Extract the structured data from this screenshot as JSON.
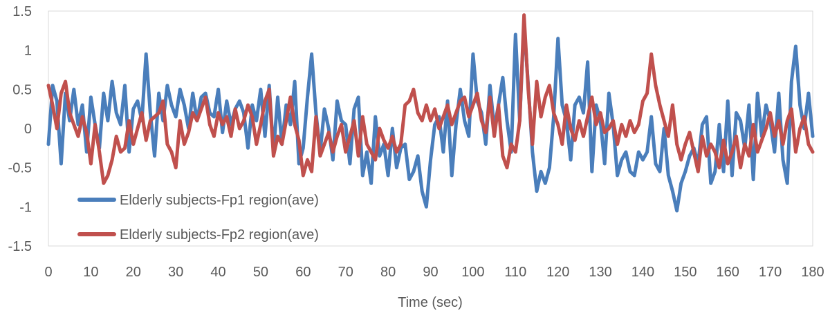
{
  "chart_data": {
    "type": "line",
    "title": "",
    "xlabel": "Time (sec)",
    "ylabel": "",
    "xlim": [
      0,
      180
    ],
    "ylim": [
      -1.5,
      1.5
    ],
    "x_ticks": [
      "0",
      "10",
      "20",
      "30",
      "40",
      "50",
      "60",
      "70",
      "80",
      "90",
      "100",
      "110",
      "120",
      "130",
      "140",
      "150",
      "160",
      "170",
      "180"
    ],
    "y_ticks": [
      "1.5",
      "1",
      "0.5",
      "0",
      "-0.5",
      "-1",
      "-1.5"
    ],
    "grid": "none",
    "legend_placement": "lower-left inside plot",
    "series": [
      {
        "name": "Elderly subjects-Fp1 region(ave)",
        "color": "#4a7ebb",
        "x": [
          0,
          1,
          2,
          3,
          4,
          5,
          6,
          7,
          8,
          9,
          10,
          11,
          12,
          13,
          14,
          15,
          16,
          17,
          18,
          19,
          20,
          21,
          22,
          23,
          24,
          25,
          26,
          27,
          28,
          29,
          30,
          31,
          32,
          33,
          34,
          35,
          36,
          37,
          38,
          39,
          40,
          41,
          42,
          43,
          44,
          45,
          46,
          47,
          48,
          49,
          50,
          51,
          52,
          53,
          54,
          55,
          56,
          57,
          58,
          59,
          60,
          61,
          62,
          63,
          64,
          65,
          66,
          67,
          68,
          69,
          70,
          71,
          72,
          73,
          74,
          75,
          76,
          77,
          78,
          79,
          80,
          81,
          82,
          83,
          84,
          85,
          86,
          87,
          88,
          89,
          90,
          91,
          92,
          93,
          94,
          95,
          96,
          97,
          98,
          99,
          100,
          101,
          102,
          103,
          104,
          105,
          106,
          107,
          108,
          109,
          110,
          111,
          112,
          113,
          114,
          115,
          116,
          117,
          118,
          119,
          120,
          121,
          122,
          123,
          124,
          125,
          126,
          127,
          128,
          129,
          130,
          131,
          132,
          133,
          134,
          135,
          136,
          137,
          138,
          139,
          140,
          141,
          142,
          143,
          144,
          145,
          146,
          147,
          148,
          149,
          150,
          151,
          152,
          153,
          154,
          155,
          156,
          157,
          158,
          159,
          160,
          161,
          162,
          163,
          164,
          165,
          166,
          167,
          168,
          169,
          170,
          171,
          172,
          173,
          174,
          175,
          176,
          177,
          178,
          179,
          180
        ],
        "y": [
          -0.2,
          0.55,
          0.35,
          -0.45,
          0.45,
          0.1,
          0.5,
          0.05,
          0.3,
          -0.3,
          0.4,
          0.05,
          -0.25,
          0.45,
          0.1,
          0.6,
          0.2,
          0.05,
          0.55,
          -0.3,
          0.25,
          0.35,
          0.1,
          0.95,
          0.2,
          -0.35,
          0.45,
          0.1,
          0.55,
          0.3,
          0.15,
          0.5,
          0.3,
          0.0,
          0.45,
          0.1,
          0.4,
          0.45,
          0.2,
          0.15,
          0.5,
          -0.05,
          0.35,
          0.05,
          0.25,
          0.35,
          0.2,
          -0.25,
          0.3,
          0.1,
          0.5,
          -0.1,
          0.55,
          -0.3,
          0.4,
          -0.2,
          0.3,
          0.05,
          0.6,
          -0.45,
          -0.25,
          0.4,
          0.95,
          0.2,
          -0.3,
          0.25,
          0.0,
          -0.4,
          0.35,
          0.1,
          0.05,
          -0.45,
          0.25,
          0.4,
          -0.6,
          -0.3,
          -0.7,
          0.15,
          -0.35,
          -0.2,
          -0.6,
          0.0,
          -0.5,
          -0.25,
          -0.2,
          -0.65,
          -0.55,
          -0.35,
          -0.8,
          -1.0,
          -0.4,
          0.05,
          0.15,
          -0.3,
          0.35,
          -0.6,
          0.05,
          0.5,
          0.1,
          -0.1,
          0.95,
          0.35,
          0.2,
          -0.2,
          0.55,
          0.0,
          0.3,
          0.65,
          0.1,
          -0.3,
          1.2,
          0.1,
          1.35,
          0.55,
          -0.3,
          -0.8,
          -0.55,
          -0.7,
          -0.5,
          0.15,
          1.15,
          0.3,
          0.1,
          -0.4,
          0.3,
          0.4,
          0.2,
          0.85,
          -0.55,
          0.3,
          0.1,
          -0.45,
          0.45,
          0.05,
          -0.6,
          -0.4,
          -0.3,
          -0.55,
          -0.6,
          -0.3,
          -0.4,
          -0.3,
          0.15,
          -0.45,
          -0.55,
          0.0,
          -0.6,
          -0.8,
          -1.05,
          -0.7,
          -0.55,
          -0.35,
          -0.25,
          -0.45,
          0.05,
          0.15,
          -0.7,
          -0.55,
          0.05,
          -0.55,
          0.35,
          -0.6,
          0.2,
          0.1,
          -0.25,
          0.3,
          -0.65,
          0.45,
          -0.1,
          0.3,
          0.1,
          -0.3,
          0.45,
          -0.4,
          -0.7,
          0.6,
          1.05,
          0.3,
          0.0,
          0.45,
          -0.1
        ]
      },
      {
        "name": "Elderly subjects-Fp2 region(ave)",
        "color": "#c0504d",
        "x": [
          0,
          1,
          2,
          3,
          4,
          5,
          6,
          7,
          8,
          9,
          10,
          11,
          12,
          13,
          14,
          15,
          16,
          17,
          18,
          19,
          20,
          21,
          22,
          23,
          24,
          25,
          26,
          27,
          28,
          29,
          30,
          31,
          32,
          33,
          34,
          35,
          36,
          37,
          38,
          39,
          40,
          41,
          42,
          43,
          44,
          45,
          46,
          47,
          48,
          49,
          50,
          51,
          52,
          53,
          54,
          55,
          56,
          57,
          58,
          59,
          60,
          61,
          62,
          63,
          64,
          65,
          66,
          67,
          68,
          69,
          70,
          71,
          72,
          73,
          74,
          75,
          76,
          77,
          78,
          79,
          80,
          81,
          82,
          83,
          84,
          85,
          86,
          87,
          88,
          89,
          90,
          91,
          92,
          93,
          94,
          95,
          96,
          97,
          98,
          99,
          100,
          101,
          102,
          103,
          104,
          105,
          106,
          107,
          108,
          109,
          110,
          111,
          112,
          113,
          114,
          115,
          116,
          117,
          118,
          119,
          120,
          121,
          122,
          123,
          124,
          125,
          126,
          127,
          128,
          129,
          130,
          131,
          132,
          133,
          134,
          135,
          136,
          137,
          138,
          139,
          140,
          141,
          142,
          143,
          144,
          145,
          146,
          147,
          148,
          149,
          150,
          151,
          152,
          153,
          154,
          155,
          156,
          157,
          158,
          159,
          160,
          161,
          162,
          163,
          164,
          165,
          166,
          167,
          168,
          169,
          170,
          171,
          172,
          173,
          174,
          175,
          176,
          177,
          178,
          179,
          180
        ],
        "y": [
          0.55,
          0.3,
          0.0,
          0.45,
          0.6,
          0.2,
          0.05,
          -0.1,
          0.15,
          -0.05,
          -0.45,
          0.05,
          -0.3,
          -0.7,
          -0.6,
          -0.4,
          -0.1,
          -0.3,
          -0.25,
          0.1,
          -0.2,
          0.0,
          0.2,
          -0.15,
          0.1,
          0.15,
          0.2,
          0.35,
          -0.2,
          -0.3,
          -0.5,
          0.1,
          -0.2,
          -0.05,
          0.2,
          0.1,
          0.25,
          0.4,
          0.05,
          -0.1,
          0.2,
          0.05,
          0.15,
          -0.1,
          0.25,
          0.0,
          0.1,
          0.3,
          0.15,
          -0.2,
          0.05,
          0.35,
          0.5,
          -0.35,
          -0.1,
          -0.2,
          0.1,
          0.4,
          0.05,
          -0.15,
          -0.6,
          -0.4,
          -0.55,
          0.15,
          -0.35,
          -0.2,
          -0.05,
          -0.3,
          -0.1,
          0.05,
          -0.3,
          -0.1,
          0.1,
          -0.35,
          0.15,
          -0.2,
          -0.3,
          -0.4,
          0.0,
          -0.15,
          -0.25,
          -0.1,
          -0.3,
          -0.2,
          0.3,
          0.35,
          0.5,
          0.2,
          0.1,
          0.3,
          0.1,
          0.25,
          0.0,
          0.15,
          0.3,
          0.05,
          0.2,
          0.35,
          0.4,
          0.15,
          0.3,
          0.45,
          0.1,
          -0.05,
          0.4,
          -0.1,
          0.3,
          -0.35,
          -0.5,
          -0.2,
          -0.3,
          0.1,
          1.45,
          0.5,
          -0.2,
          0.6,
          0.15,
          0.4,
          0.55,
          0.2,
          0.05,
          -0.2,
          0.3,
          0.0,
          -0.15,
          0.1,
          -0.1,
          0.15,
          0.4,
          0.05,
          0.2,
          -0.05,
          0.0,
          0.1,
          -0.2,
          0.05,
          -0.1,
          0.1,
          -0.05,
          0.05,
          0.35,
          0.45,
          0.95,
          0.55,
          0.3,
          0.1,
          -0.1,
          0.3,
          -0.2,
          -0.4,
          -0.2,
          -0.05,
          -0.3,
          -0.55,
          -0.1,
          -0.35,
          -0.2,
          -0.3,
          -0.5,
          -0.15,
          -0.45,
          -0.3,
          -0.1,
          -0.5,
          -0.2,
          -0.35,
          0.05,
          -0.3,
          -0.15,
          0.0,
          0.2,
          -0.1,
          0.1,
          -0.2,
          0.1,
          0.25,
          -0.3,
          0.0,
          0.15,
          -0.2,
          -0.3
        ]
      }
    ]
  }
}
